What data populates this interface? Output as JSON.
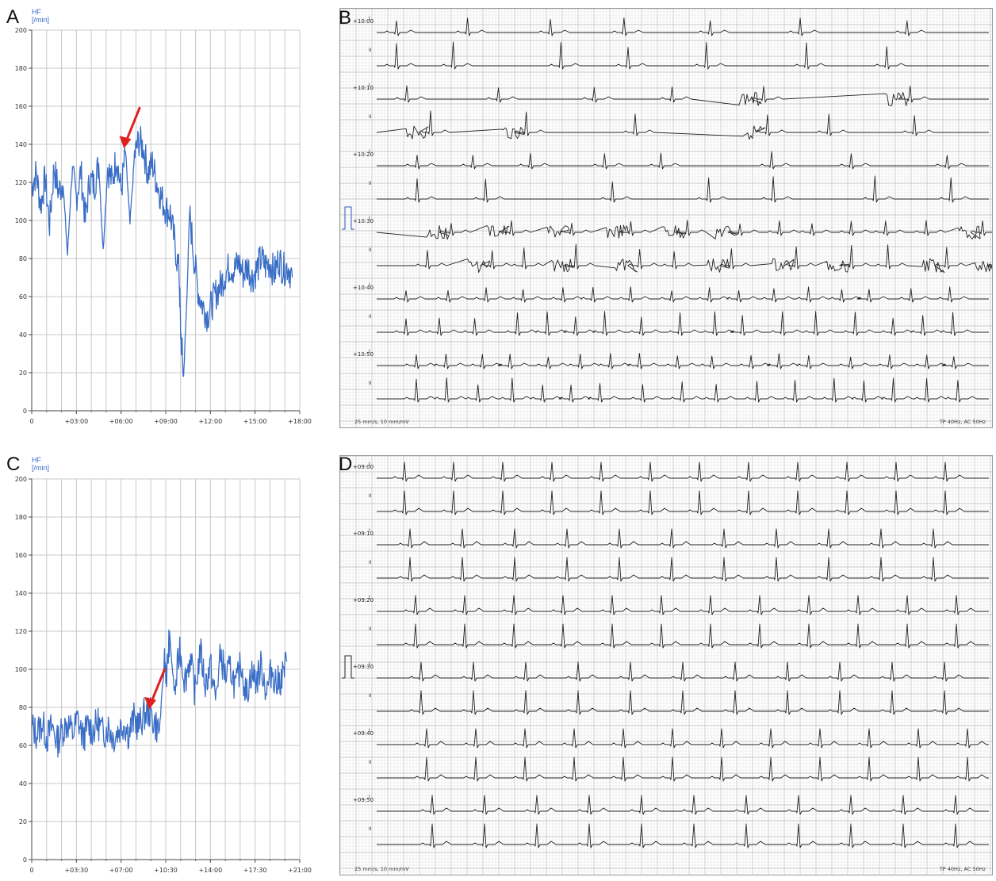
{
  "panels": {
    "A": {
      "letter": "A"
    },
    "B": {
      "letter": "B"
    },
    "C": {
      "letter": "C"
    },
    "D": {
      "letter": "D"
    }
  },
  "chart_data": [
    {
      "panel": "A",
      "type": "line",
      "ylabel": "HF",
      "yunit": "[/min]",
      "ylim": [
        0,
        200
      ],
      "yticks": [
        0,
        20,
        40,
        60,
        80,
        100,
        120,
        140,
        160,
        180,
        200
      ],
      "xticks": [
        "0",
        "+03:00",
        "+06:00",
        "+09:00",
        "+12:00",
        "+15:00",
        "+18:00"
      ],
      "xlim_minutes": [
        0,
        18
      ],
      "grid": true,
      "line_color": "#3a6ec6",
      "annotation": {
        "type": "arrow",
        "color": "#e02020",
        "x_minutes": 6.2,
        "y": 137
      },
      "series": [
        {
          "x_minutes": [
            0,
            0.3,
            0.6,
            0.9,
            1.2,
            1.5,
            1.8,
            2.1,
            2.4,
            2.7,
            3.0,
            3.3,
            3.6,
            3.9,
            4.2,
            4.5,
            4.8,
            5.1,
            5.4,
            5.7,
            6.0,
            6.3,
            6.6,
            6.9,
            7.2,
            7.5,
            7.8,
            8.1,
            8.4,
            8.7,
            9.0,
            9.3,
            9.6,
            9.9,
            10.0,
            10.2,
            10.4,
            10.6,
            10.9,
            11.2,
            11.5,
            11.8,
            12.1,
            12.4,
            12.7,
            13.0,
            13.3,
            13.6,
            13.9,
            14.2,
            14.5,
            14.8,
            15.1,
            15.4,
            15.7,
            16.0,
            16.3,
            16.6,
            16.9,
            17.2,
            17.5
          ],
          "y": [
            118,
            125,
            108,
            122,
            98,
            128,
            115,
            120,
            82,
            125,
            112,
            126,
            100,
            122,
            118,
            130,
            84,
            128,
            120,
            134,
            115,
            136,
            98,
            134,
            142,
            138,
            125,
            130,
            120,
            112,
            106,
            104,
            88,
            72,
            42,
            18,
            55,
            104,
            80,
            62,
            55,
            50,
            56,
            62,
            66,
            72,
            76,
            74,
            78,
            72,
            76,
            70,
            74,
            80,
            76,
            78,
            72,
            80,
            74,
            76,
            70
          ]
        }
      ]
    },
    {
      "panel": "C",
      "type": "line",
      "ylabel": "HF",
      "yunit": "[/min]",
      "ylim": [
        0,
        200
      ],
      "yticks": [
        0,
        20,
        40,
        60,
        80,
        100,
        120,
        140,
        160,
        180,
        200
      ],
      "xticks": [
        "0",
        "+03:30",
        "+07:00",
        "+10:30",
        "+14:00",
        "+17:30",
        "+21:00"
      ],
      "xlim_minutes": [
        0,
        21
      ],
      "grid": true,
      "line_color": "#3a6ec6",
      "annotation": {
        "type": "arrow",
        "color": "#e02020",
        "x_minutes": 9.2,
        "y": 78
      },
      "series": [
        {
          "x_minutes": [
            0,
            0.4,
            0.8,
            1.2,
            1.6,
            2.0,
            2.4,
            2.8,
            3.2,
            3.6,
            4.0,
            4.4,
            4.8,
            5.2,
            5.6,
            6.0,
            6.4,
            6.8,
            7.2,
            7.6,
            8.0,
            8.4,
            8.8,
            9.2,
            9.6,
            10.0,
            10.4,
            10.6,
            10.8,
            11.2,
            11.6,
            12.0,
            12.4,
            12.8,
            13.2,
            13.6,
            14.0,
            14.4,
            14.8,
            15.2,
            15.6,
            16.0,
            16.4,
            16.8,
            17.2,
            17.6,
            18.0,
            18.4,
            18.8,
            19.2,
            19.6,
            20.0
          ],
          "y": [
            70,
            66,
            72,
            64,
            70,
            62,
            68,
            72,
            66,
            74,
            64,
            70,
            68,
            72,
            66,
            70,
            64,
            68,
            72,
            66,
            74,
            70,
            76,
            78,
            72,
            68,
            104,
            98,
            118,
            86,
            112,
            94,
            106,
            88,
            110,
            92,
            102,
            84,
            108,
            96,
            100,
            90,
            104,
            86,
            98,
            94,
            102,
            88,
            100,
            92,
            96,
            104
          ]
        }
      ]
    },
    {
      "panel": "B",
      "type": "ecg",
      "strips": [
        {
          "time": "+10:00",
          "leads": [
            "I",
            "II"
          ]
        },
        {
          "time": "+10:10",
          "leads": [
            "I",
            "II"
          ]
        },
        {
          "time": "+10:20",
          "leads": [
            "I",
            "II"
          ]
        },
        {
          "time": "+10:30",
          "leads": [
            "I",
            "II"
          ]
        },
        {
          "time": "+10:40",
          "leads": [
            "I",
            "II"
          ]
        },
        {
          "time": "+10:50",
          "leads": [
            "I",
            "II"
          ]
        }
      ],
      "footer_left": "25 mm/s, 10 mm/mV",
      "footer_right": "TP 40Hz, AC 50Hz"
    },
    {
      "panel": "D",
      "type": "ecg",
      "strips": [
        {
          "time": "+09:00",
          "leads": [
            "I",
            "II"
          ]
        },
        {
          "time": "+09:10",
          "leads": [
            "I",
            "II"
          ]
        },
        {
          "time": "+09:20",
          "leads": [
            "I",
            "II"
          ]
        },
        {
          "time": "+09:30",
          "leads": [
            "I",
            "II"
          ]
        },
        {
          "time": "+09:40",
          "leads": [
            "I",
            "II"
          ]
        },
        {
          "time": "+09:50",
          "leads": [
            "I",
            "II"
          ]
        }
      ],
      "footer_left": "25 mm/s, 10 mm/mV",
      "footer_right": "TP 40Hz, AC 50Hz"
    }
  ]
}
